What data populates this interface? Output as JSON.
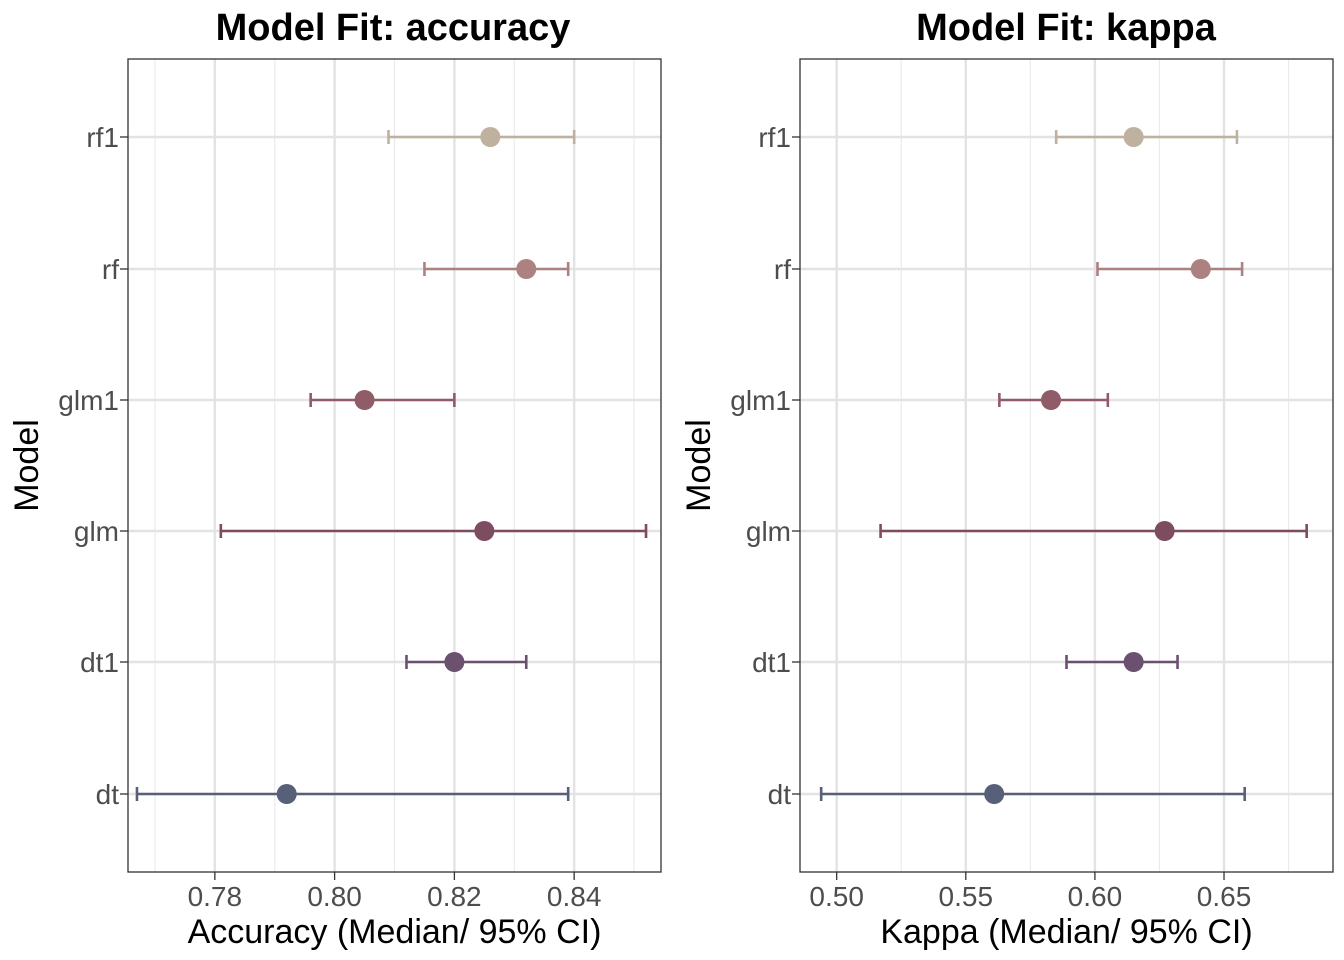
{
  "chart_data": [
    {
      "type": "errorbar",
      "title": "Model Fit: accuracy",
      "xlabel": "Accuracy  (Median/ 95% CI)",
      "ylabel": "Model",
      "xlim": [
        0.7655,
        0.8545
      ],
      "xticks": [
        0.78,
        0.8,
        0.82,
        0.84
      ],
      "xtick_labels": [
        "0.78",
        "0.80",
        "0.82",
        "0.84"
      ],
      "grid": true,
      "categories": [
        "rf1",
        "rf",
        "glm1",
        "glm",
        "dt1",
        "dt"
      ],
      "series": [
        {
          "category": "rf1",
          "median": 0.826,
          "low": 0.809,
          "high": 0.84,
          "color": "#BEB19F"
        },
        {
          "category": "rf",
          "median": 0.832,
          "low": 0.815,
          "high": 0.839,
          "color": "#AC8280"
        },
        {
          "category": "glm1",
          "median": 0.805,
          "low": 0.796,
          "high": 0.82,
          "color": "#905C67"
        },
        {
          "category": "glm",
          "median": 0.825,
          "low": 0.781,
          "high": 0.852,
          "color": "#7D4C61"
        },
        {
          "category": "dt1",
          "median": 0.82,
          "low": 0.812,
          "high": 0.832,
          "color": "#6B5070"
        },
        {
          "category": "dt",
          "median": 0.792,
          "low": 0.767,
          "high": 0.839,
          "color": "#586079"
        }
      ]
    },
    {
      "type": "errorbar",
      "title": "Model Fit: kappa",
      "xlabel": "Kappa (Median/ 95% CI)",
      "ylabel": "Model",
      "xlim": [
        0.4858,
        0.6922
      ],
      "xticks": [
        0.5,
        0.55,
        0.6,
        0.65
      ],
      "xtick_labels": [
        "0.50",
        "0.55",
        "0.60",
        "0.65"
      ],
      "grid": true,
      "categories": [
        "rf1",
        "rf",
        "glm1",
        "glm",
        "dt1",
        "dt"
      ],
      "series": [
        {
          "category": "rf1",
          "median": 0.615,
          "low": 0.585,
          "high": 0.655,
          "color": "#BEB19F"
        },
        {
          "category": "rf",
          "median": 0.641,
          "low": 0.601,
          "high": 0.657,
          "color": "#AC8280"
        },
        {
          "category": "glm1",
          "median": 0.583,
          "low": 0.563,
          "high": 0.605,
          "color": "#905C67"
        },
        {
          "category": "glm",
          "median": 0.627,
          "low": 0.517,
          "high": 0.682,
          "color": "#7D4C61"
        },
        {
          "category": "dt1",
          "median": 0.615,
          "low": 0.589,
          "high": 0.632,
          "color": "#6B5070"
        },
        {
          "category": "dt",
          "median": 0.561,
          "low": 0.494,
          "high": 0.658,
          "color": "#586079"
        }
      ]
    }
  ]
}
